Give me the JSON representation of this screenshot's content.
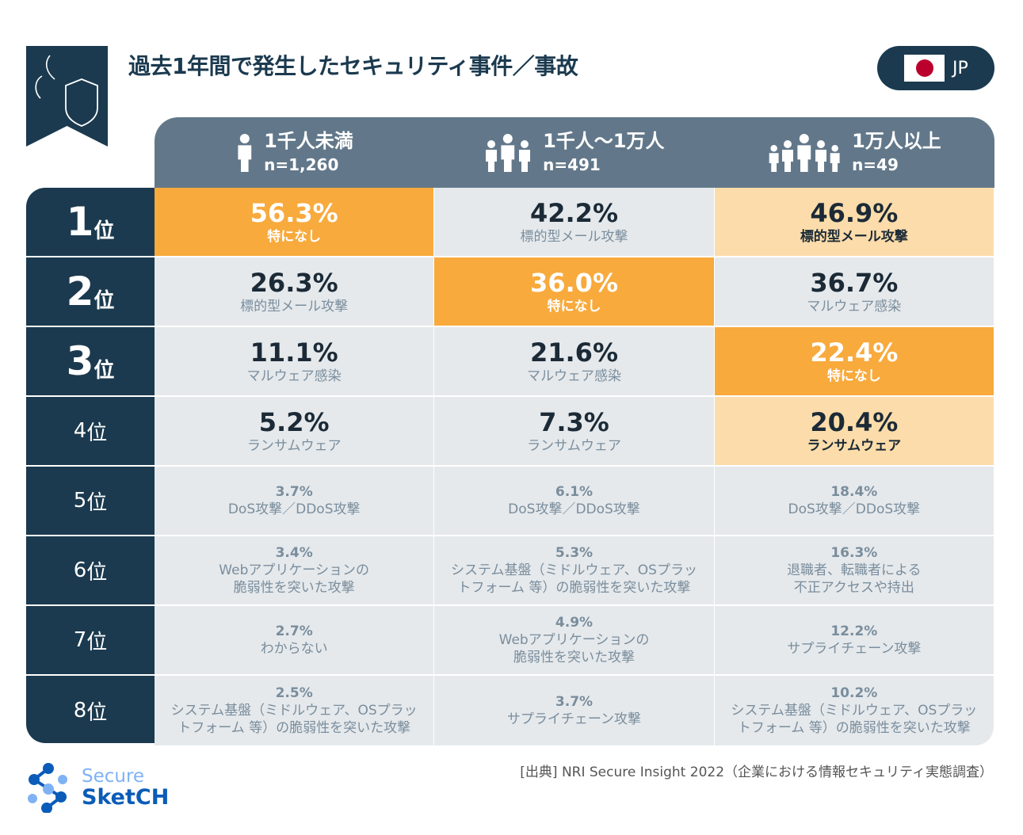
{
  "title": "過去1年間で発生したセキュリティ事件／事故",
  "language": {
    "label": "JP",
    "flag": "japan-flag"
  },
  "colors": {
    "navy": "#1b3a4f",
    "header": "#62788a",
    "first_in_column": "#f8aa3c",
    "notable": "#fcdcaa",
    "cell": "#e5e9ec"
  },
  "chart_data": {
    "type": "table",
    "columns": [
      {
        "label": "1千人未満",
        "n": "n=1,260",
        "icon": "person-icon"
      },
      {
        "label": "1千人〜1万人",
        "n": "n=491",
        "icon": "group-icon"
      },
      {
        "label": "1万人以上",
        "n": "n=49",
        "icon": "crowd-icon"
      }
    ],
    "rows": [
      {
        "rank": "1",
        "suffix": "位",
        "cells": [
          {
            "pct": "56.3%",
            "label": "特になし",
            "style": "orange"
          },
          {
            "pct": "42.2%",
            "label": "標的型メール攻撃",
            "style": "gray"
          },
          {
            "pct": "46.9%",
            "label": "標的型メール攻撃",
            "style": "light"
          }
        ]
      },
      {
        "rank": "2",
        "suffix": "位",
        "cells": [
          {
            "pct": "26.3%",
            "label": "標的型メール攻撃",
            "style": "gray"
          },
          {
            "pct": "36.0%",
            "label": "特になし",
            "style": "orange"
          },
          {
            "pct": "36.7%",
            "label": "マルウェア感染",
            "style": "gray"
          }
        ]
      },
      {
        "rank": "3",
        "suffix": "位",
        "cells": [
          {
            "pct": "11.1%",
            "label": "マルウェア感染",
            "style": "gray"
          },
          {
            "pct": "21.6%",
            "label": "マルウェア感染",
            "style": "gray"
          },
          {
            "pct": "22.4%",
            "label": "特になし",
            "style": "orange"
          }
        ]
      },
      {
        "rank": "4",
        "suffix": "位",
        "cells": [
          {
            "pct": "5.2%",
            "label": "ランサムウェア",
            "style": "gray"
          },
          {
            "pct": "7.3%",
            "label": "ランサムウェア",
            "style": "gray"
          },
          {
            "pct": "20.4%",
            "label": "ランサムウェア",
            "style": "light"
          }
        ]
      },
      {
        "rank": "5",
        "suffix": "位",
        "cells": [
          {
            "pct": "3.7%",
            "label": "DoS攻撃／DDoS攻撃",
            "style": "gray"
          },
          {
            "pct": "6.1%",
            "label": "DoS攻撃／DDoS攻撃",
            "style": "gray"
          },
          {
            "pct": "18.4%",
            "label": "DoS攻撃／DDoS攻撃",
            "style": "gray"
          }
        ]
      },
      {
        "rank": "6",
        "suffix": "位",
        "cells": [
          {
            "pct": "3.4%",
            "label": "Webアプリケーションの\n脆弱性を突いた攻撃",
            "style": "gray"
          },
          {
            "pct": "5.3%",
            "label": "システム基盤（ミドルウェア、OSプラッ\nトフォーム 等）の脆弱性を突いた攻撃",
            "style": "gray"
          },
          {
            "pct": "16.3%",
            "label": "退職者、転職者による\n不正アクセスや持出",
            "style": "gray"
          }
        ]
      },
      {
        "rank": "7",
        "suffix": "位",
        "cells": [
          {
            "pct": "2.7%",
            "label": "わからない",
            "style": "gray"
          },
          {
            "pct": "4.9%",
            "label": "Webアプリケーションの\n脆弱性を突いた攻撃",
            "style": "gray"
          },
          {
            "pct": "12.2%",
            "label": "サプライチェーン攻撃",
            "style": "gray"
          }
        ]
      },
      {
        "rank": "8",
        "suffix": "位",
        "cells": [
          {
            "pct": "2.5%",
            "label": "システム基盤（ミドルウェア、OSプラッ\nトフォーム 等）の脆弱性を突いた攻撃",
            "style": "gray"
          },
          {
            "pct": "3.7%",
            "label": "サプライチェーン攻撃",
            "style": "gray"
          },
          {
            "pct": "10.2%",
            "label": "システム基盤（ミドルウェア、OSプラッ\nトフォーム 等）の脆弱性を突いた攻撃",
            "style": "gray"
          }
        ]
      }
    ]
  },
  "source": "[出典] NRI Secure Insight 2022（企業における情報セキュリティ実態調査）",
  "logo": {
    "line1": "Secure",
    "line2": "SketCH"
  }
}
